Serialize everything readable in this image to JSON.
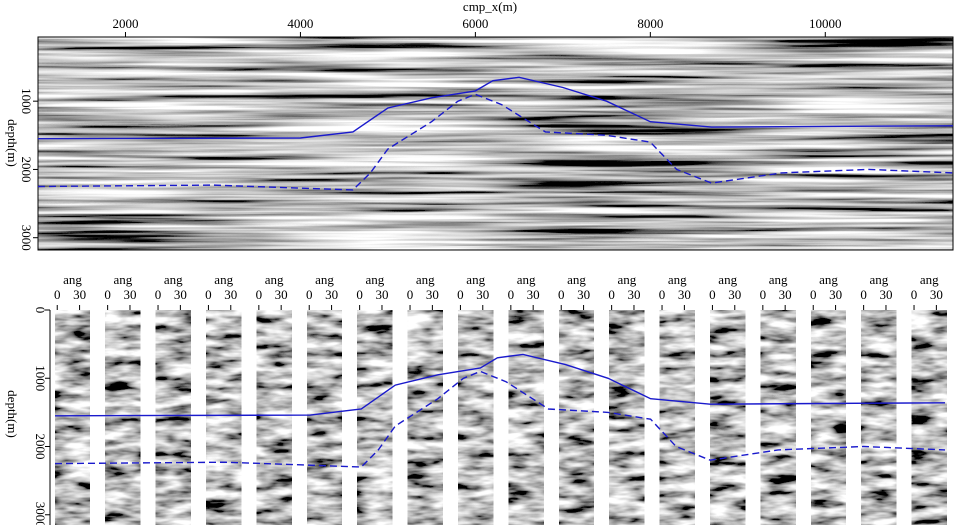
{
  "chart_data": [
    {
      "type": "image",
      "x_label": "cmp_x(m)",
      "y_label": "depth(m)",
      "xlim": [
        1000,
        11460
      ],
      "ylim": [
        60,
        3180
      ],
      "xticks": [
        2000,
        4000,
        6000,
        8000,
        10000
      ],
      "yticks": [
        1000,
        2000,
        3000
      ],
      "series": [
        {
          "color": "#1a1acc",
          "dash": false,
          "x": [
            1000,
            4000,
            4600,
            5000,
            5500,
            6000,
            6200,
            6500,
            7000,
            7500,
            8000,
            8700,
            10000,
            11460
          ],
          "values": [
            1550,
            1540,
            1450,
            1100,
            950,
            850,
            700,
            650,
            800,
            1000,
            1300,
            1380,
            1370,
            1360
          ]
        },
        {
          "color": "#1a1acc",
          "dash": true,
          "x": [
            1000,
            3000,
            4600,
            4800,
            5000,
            5500,
            5800,
            6000,
            6300,
            6800,
            7500,
            8000,
            8300,
            8700,
            9500,
            10500,
            11460
          ],
          "values": [
            2250,
            2230,
            2300,
            2050,
            1700,
            1300,
            1000,
            900,
            1050,
            1450,
            1500,
            1600,
            2000,
            2200,
            2050,
            2000,
            2050
          ]
        }
      ]
    },
    {
      "type": "gathers",
      "x_label": "ang",
      "y_label": "depth(m)",
      "xlim": [
        -3,
        44
      ],
      "xticks": [
        0,
        30
      ],
      "ylim": [
        0,
        3150
      ],
      "yticks": [
        0,
        1000,
        2000,
        3000
      ]
    }
  ]
}
